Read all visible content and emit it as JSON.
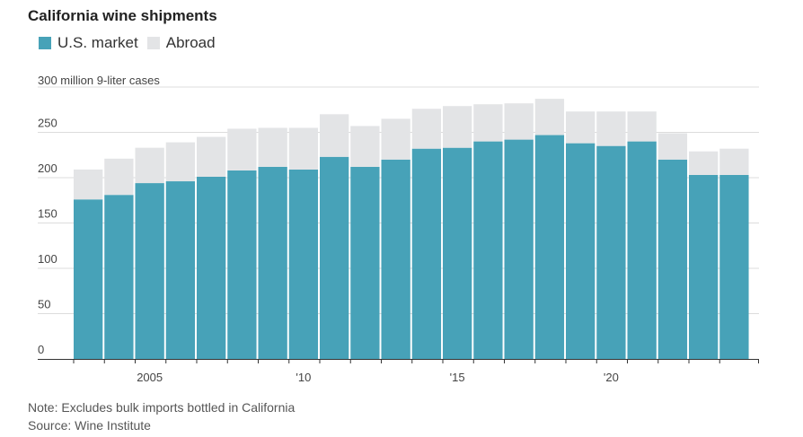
{
  "chart_data": {
    "type": "bar",
    "stacked": true,
    "title": "California wine shipments",
    "unit_label": "300 million 9-liter cases",
    "years": [
      2003,
      2004,
      2005,
      2006,
      2007,
      2008,
      2009,
      2010,
      2011,
      2012,
      2013,
      2014,
      2015,
      2016,
      2017,
      2018,
      2019,
      2020,
      2021,
      2022,
      2023,
      2024
    ],
    "series": [
      {
        "name": "U.S. market",
        "color": "#47a2b8",
        "values": [
          176,
          181,
          194,
          196,
          201,
          208,
          212,
          209,
          223,
          212,
          220,
          232,
          233,
          240,
          242,
          247,
          238,
          235,
          240,
          220,
          203,
          203
        ]
      },
      {
        "name": "Abroad",
        "color": "#e3e4e6",
        "values": [
          33,
          40,
          39,
          43,
          44,
          46,
          43,
          46,
          47,
          45,
          45,
          44,
          46,
          41,
          40,
          40,
          35,
          38,
          33,
          29,
          26,
          29
        ]
      }
    ],
    "y_ticks": [
      {
        "value": 0,
        "label": "0"
      },
      {
        "value": 50,
        "label": "50"
      },
      {
        "value": 100,
        "label": "100"
      },
      {
        "value": 150,
        "label": "150"
      },
      {
        "value": 200,
        "label": "200"
      },
      {
        "value": 250,
        "label": "250"
      }
    ],
    "x_ticks": [
      {
        "year": 2005,
        "label": "2005"
      },
      {
        "year": 2010,
        "label": "'10"
      },
      {
        "year": 2015,
        "label": "'15"
      },
      {
        "year": 2020,
        "label": "'20"
      }
    ],
    "ylim": [
      0,
      300
    ],
    "grid": true,
    "legend_position": "top-left"
  },
  "notes": {
    "note": "Note: Excludes bulk imports bottled in California",
    "source": "Source: Wine Institute"
  }
}
